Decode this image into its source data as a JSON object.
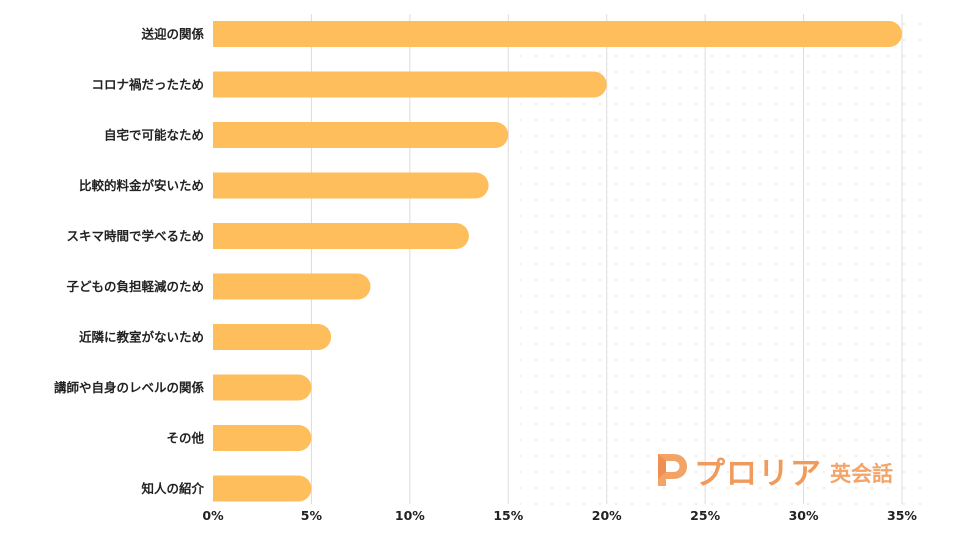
{
  "chart_data": {
    "type": "bar",
    "orientation": "horizontal",
    "categories": [
      "送迎の関係",
      "コロナ禍だったため",
      "自宅で可能なため",
      "比較的料金が安いため",
      "スキマ時間で学べるため",
      "子どもの負担軽減のため",
      "近隣に教室がないため",
      "講師や自身のレベルの関係",
      "その他",
      "知人の紹介"
    ],
    "values": [
      35,
      20,
      15,
      14,
      13,
      8,
      6,
      5,
      5,
      5
    ],
    "xlim": [
      0,
      35
    ],
    "xticks": [
      0,
      5,
      10,
      15,
      20,
      25,
      30,
      35
    ],
    "xtick_labels": [
      "0%",
      "5%",
      "10%",
      "15%",
      "20%",
      "25%",
      "30%",
      "35%"
    ],
    "title": "",
    "xlabel": "",
    "ylabel": "",
    "grid": "vertical",
    "bar_color": "#ffbe5c",
    "grid_color": "#dcdcdc",
    "dot_color": "#f2eadc"
  },
  "logo": {
    "main": "プロリア",
    "sub": "英会話",
    "color": "#f09a5c"
  }
}
